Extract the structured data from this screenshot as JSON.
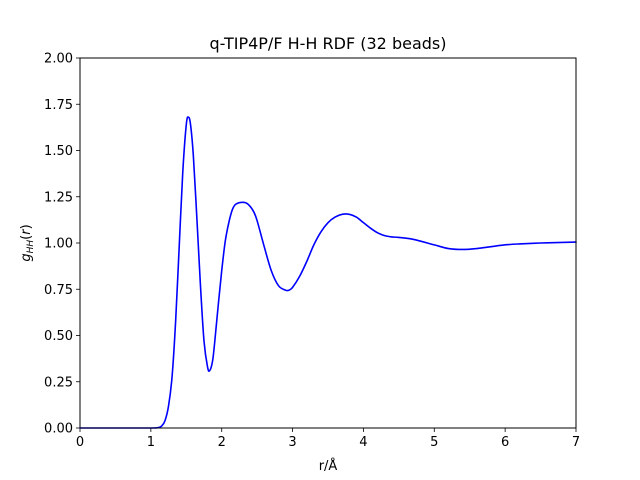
{
  "chart_data": {
    "type": "line",
    "title": "q-TIP4P/F H-H RDF (32 beads)",
    "xlabel": "r/Å",
    "ylabel": "g_HH(r)",
    "xlim": [
      0,
      7
    ],
    "ylim": [
      0,
      2
    ],
    "xticks": [
      0,
      1,
      2,
      3,
      4,
      5,
      6,
      7
    ],
    "xtick_labels": [
      "0",
      "1",
      "2",
      "3",
      "4",
      "5",
      "6",
      "7"
    ],
    "yticks": [
      0,
      0.25,
      0.5,
      0.75,
      1.0,
      1.25,
      1.5,
      1.75,
      2.0
    ],
    "ytick_labels": [
      "0.00",
      "0.25",
      "0.50",
      "0.75",
      "1.00",
      "1.25",
      "1.50",
      "1.75",
      "2.00"
    ],
    "grid": false,
    "series": [
      {
        "color": "#0000ff",
        "x": [
          0,
          0.5,
          1.0,
          1.1,
          1.15,
          1.2,
          1.25,
          1.3,
          1.35,
          1.4,
          1.45,
          1.5,
          1.53,
          1.56,
          1.6,
          1.65,
          1.7,
          1.75,
          1.8,
          1.83,
          1.87,
          1.9,
          1.95,
          2.0,
          2.05,
          2.1,
          2.15,
          2.2,
          2.3,
          2.37,
          2.45,
          2.5,
          2.6,
          2.7,
          2.8,
          2.9,
          2.95,
          3.0,
          3.1,
          3.2,
          3.3,
          3.4,
          3.5,
          3.6,
          3.7,
          3.8,
          3.9,
          4.0,
          4.1,
          4.2,
          4.3,
          4.4,
          4.5,
          4.7,
          5.0,
          5.2,
          5.4,
          5.6,
          5.8,
          6.0,
          6.2,
          6.5,
          6.8,
          7.0
        ],
        "y": [
          0.0,
          0.0,
          0.0,
          0.002,
          0.01,
          0.04,
          0.12,
          0.28,
          0.58,
          0.98,
          1.38,
          1.64,
          1.68,
          1.64,
          1.47,
          1.13,
          0.77,
          0.47,
          0.33,
          0.31,
          0.36,
          0.46,
          0.66,
          0.85,
          1.01,
          1.11,
          1.18,
          1.21,
          1.22,
          1.21,
          1.17,
          1.12,
          0.98,
          0.85,
          0.77,
          0.745,
          0.745,
          0.76,
          0.82,
          0.9,
          0.99,
          1.06,
          1.11,
          1.14,
          1.155,
          1.155,
          1.14,
          1.11,
          1.08,
          1.055,
          1.04,
          1.033,
          1.03,
          1.02,
          0.99,
          0.97,
          0.965,
          0.97,
          0.98,
          0.99,
          0.995,
          1.0,
          1.003,
          1.005
        ]
      }
    ]
  }
}
